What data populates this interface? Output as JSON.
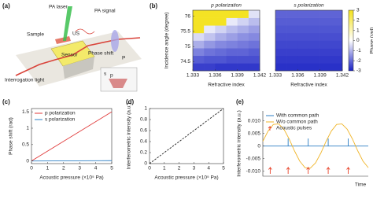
{
  "schematic": {
    "panel": "(a)",
    "labels": {
      "laser": "PA laser",
      "signal": "PA signal",
      "sample": "Sample",
      "us": "US",
      "sensor": "Sensor",
      "phase": "Phase shift",
      "lens": "P",
      "light": "Interrogation light",
      "s": "s",
      "p": "p"
    }
  },
  "chart_data": [
    {
      "type": "heatmap",
      "panel": "(b)",
      "title": "p polarization",
      "xlabel": "Refractive index",
      "ylabel": "Incidence angle (degree)",
      "x": [
        1.33375,
        1.33525,
        1.33675,
        1.33825,
        1.33975,
        1.34125
      ],
      "y": [
        74.325,
        74.575,
        74.825,
        75.075,
        75.325,
        75.575,
        75.825,
        76.075
      ],
      "z": [
        [
          -2.6,
          -2.6,
          -2.7,
          -2.7,
          -2.7,
          -2.7
        ],
        [
          -2.2,
          -2.3,
          -2.3,
          -2.4,
          -2.4,
          -2.4
        ],
        [
          -1.7,
          -1.9,
          -2.0,
          -2.1,
          -2.1,
          -2.2
        ],
        [
          -1.1,
          -1.4,
          -1.6,
          -1.7,
          -1.8,
          -1.9
        ],
        [
          -0.5,
          -0.8,
          -1.1,
          -1.3,
          -1.5,
          -1.6
        ],
        [
          2.9,
          -0.3,
          -0.6,
          -0.9,
          -1.1,
          -1.3
        ],
        [
          2.9,
          2.9,
          2.9,
          -0.3,
          -0.6,
          -0.9
        ],
        [
          2.9,
          2.9,
          2.9,
          2.9,
          2.9,
          -0.4
        ]
      ],
      "xlim": [
        1.333,
        1.342
      ],
      "ylim": [
        74.2,
        76.2
      ],
      "xticks": [
        1.333,
        1.336,
        1.339,
        1.342
      ],
      "yticks": [
        74.5,
        75,
        75.5,
        76
      ],
      "clim": [
        -3,
        3
      ],
      "colormap": [
        "#1a22c4",
        "#ffffff",
        "#f4e21c"
      ]
    },
    {
      "type": "heatmap",
      "title": "s polarization",
      "xlabel": "Refractive index",
      "x": [
        1.33375,
        1.33525,
        1.33675,
        1.33825,
        1.33975,
        1.34125
      ],
      "y": [
        74.325,
        74.575,
        74.825,
        75.075,
        75.325,
        75.575,
        75.825,
        76.075
      ],
      "z": [
        [
          -2.8,
          -2.8,
          -2.8,
          -2.8,
          -2.8,
          -2.8
        ],
        [
          -2.7,
          -2.7,
          -2.7,
          -2.7,
          -2.7,
          -2.7
        ],
        [
          -2.6,
          -2.6,
          -2.6,
          -2.6,
          -2.6,
          -2.6
        ],
        [
          -2.5,
          -2.5,
          -2.5,
          -2.5,
          -2.5,
          -2.5
        ],
        [
          -2.4,
          -2.4,
          -2.4,
          -2.4,
          -2.4,
          -2.4
        ],
        [
          -2.3,
          -2.3,
          -2.3,
          -2.3,
          -2.3,
          -2.3
        ],
        [
          -2.2,
          -2.2,
          -2.2,
          -2.2,
          -2.2,
          -2.2
        ],
        [
          -2.1,
          -2.1,
          -2.1,
          -2.1,
          -2.1,
          -2.1
        ]
      ],
      "xlim": [
        1.333,
        1.342
      ],
      "ylim": [
        74.2,
        76.2
      ],
      "xticks": [
        1.333,
        1.336,
        1.339,
        1.342
      ],
      "clim": [
        -3,
        3
      ],
      "colormap": [
        "#1a22c4",
        "#ffffff",
        "#f4e21c"
      ],
      "colorbar_label": "Phase (rad)",
      "colorbar_ticks": [
        3,
        2,
        1,
        0,
        -1,
        -2,
        -3
      ]
    },
    {
      "type": "line",
      "panel": "(c)",
      "xlabel": "Acoustic pressure (×10⁵ Pa)",
      "ylabel": "Phase shift (rad)",
      "x": [
        0,
        5
      ],
      "series": [
        {
          "name": "p polarization",
          "color": "#e03a3a",
          "values": [
            0,
            1.5
          ]
        },
        {
          "name": "s polarization",
          "color": "#2d7fc4",
          "values": [
            0,
            0.01
          ]
        }
      ],
      "xlim": [
        0,
        5
      ],
      "ylim": [
        -0.08,
        1.6
      ],
      "xticks": [
        0,
        1,
        2,
        3,
        4,
        5
      ],
      "yticks": [
        0,
        0.5,
        1,
        1.5
      ],
      "legend": "upper left",
      "frame": "box"
    },
    {
      "type": "line",
      "panel": "(d)",
      "xlabel": "Acoustic pressure (×10⁵ Pa)",
      "ylabel": "Interferometric intensity (a.u.)",
      "x": [
        0,
        5
      ],
      "series": [
        {
          "color": "#222222",
          "dash": true,
          "values": [
            0,
            1
          ]
        }
      ],
      "xlim": [
        0,
        5
      ],
      "ylim": [
        0,
        1
      ],
      "xticks": [
        0,
        1,
        2,
        3,
        4,
        5
      ],
      "yticks": [
        0,
        0.2,
        0.4,
        0.6,
        0.8,
        1
      ],
      "frame": "box"
    },
    {
      "type": "line",
      "panel": "(e)",
      "xlabel": "Time",
      "ylabel": "Interferometric intensity (a.u.)",
      "x": [
        0,
        0.5,
        1,
        1.5,
        2,
        2.5,
        3,
        3.5,
        4,
        4.5,
        5,
        5.5,
        6,
        6.5,
        7,
        7.5,
        8,
        8.5,
        9,
        9.5,
        10
      ],
      "series": [
        {
          "name": "With common path",
          "color": "#2d7fc4",
          "x": [
            0,
            2.4,
            2.4,
            2.4,
            4.3,
            4.3,
            4.3,
            6.2,
            6.2,
            6.2,
            8.1,
            8.1,
            8.1,
            10
          ],
          "values": [
            0,
            0,
            0.003,
            0,
            0,
            0.003,
            0,
            0,
            0.003,
            0,
            0,
            0.003,
            0,
            0
          ]
        },
        {
          "name": "W/o common path",
          "color": "#f0b52a",
          "values": [
            0.0019,
            0.006,
            0.0086,
            0.0088,
            0.0067,
            0.0028,
            -0.0019,
            -0.006,
            -0.0086,
            -0.0088,
            -0.0067,
            -0.0028,
            0.0019,
            0.006,
            0.0086,
            0.0088,
            0.0067,
            0.0028,
            -0.0019,
            -0.006,
            -0.0086
          ]
        }
      ],
      "pulses": [
        0.7,
        2.4,
        4.3,
        6.2,
        8.1
      ],
      "pulses_label": "Acoustic pulses",
      "pulses_color": "#e8452c",
      "xlim": [
        0,
        10
      ],
      "ylim": [
        -0.012,
        0.014
      ],
      "yticks": [
        {
          "value": -0.01,
          "label": "-0.010"
        },
        {
          "value": -0.005,
          "label": "-0.005"
        },
        0,
        {
          "value": 0.005,
          "label": "0.005"
        },
        {
          "value": 0.01,
          "label": "0.010"
        }
      ],
      "legend": "upper left",
      "frame": "axes"
    }
  ]
}
